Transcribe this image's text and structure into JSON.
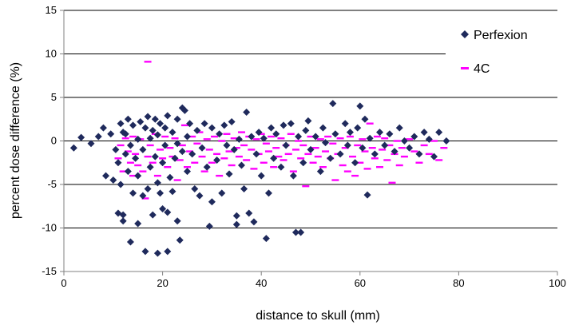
{
  "chart_data": {
    "type": "scatter",
    "xlabel": "distance to skull (mm)",
    "ylabel": "percent dose difference (%)",
    "xlim": [
      0,
      100
    ],
    "ylim": [
      -15,
      15
    ],
    "xticks": [
      0,
      20,
      40,
      60,
      80,
      100
    ],
    "yticks": [
      -15,
      -10,
      -5,
      0,
      5,
      10,
      15
    ],
    "grid": "horizontal",
    "legend_position": "top-right",
    "series": [
      {
        "name": "Perfexion",
        "marker": "diamond",
        "color": "#1f2a5c",
        "points": [
          [
            2,
            -0.8
          ],
          [
            3.5,
            0.4
          ],
          [
            5.5,
            -0.3
          ],
          [
            7,
            0.5
          ],
          [
            8,
            1.5
          ],
          [
            8.5,
            -4
          ],
          [
            9.5,
            0.8
          ],
          [
            10,
            -4.5
          ],
          [
            10.5,
            -1
          ],
          [
            11,
            -8.3
          ],
          [
            11,
            -2.5
          ],
          [
            11.5,
            -5
          ],
          [
            11.5,
            2
          ],
          [
            12,
            -9.2
          ],
          [
            12,
            -8.5
          ],
          [
            12,
            1
          ],
          [
            12.5,
            -1.5
          ],
          [
            12.5,
            0.8
          ],
          [
            13,
            2.5
          ],
          [
            13,
            -3.5
          ],
          [
            13.5,
            -11.6
          ],
          [
            13.5,
            -0.5
          ],
          [
            14,
            -6
          ],
          [
            14,
            1.8
          ],
          [
            14.5,
            -2
          ],
          [
            15,
            -9.5
          ],
          [
            15,
            0.2
          ],
          [
            15,
            -4
          ],
          [
            15.5,
            2.2
          ],
          [
            16,
            -6.3
          ],
          [
            16,
            -1
          ],
          [
            16.5,
            -12.7
          ],
          [
            16.5,
            1.5
          ],
          [
            17,
            -5.5
          ],
          [
            17,
            2.8
          ],
          [
            17.5,
            -3
          ],
          [
            17.5,
            0.3
          ],
          [
            18,
            -8.5
          ],
          [
            18,
            1.2
          ],
          [
            18.5,
            -1.8
          ],
          [
            18.5,
            2.5
          ],
          [
            19,
            -12.9
          ],
          [
            19,
            -4.8
          ],
          [
            19,
            0.7
          ],
          [
            19.5,
            -6
          ],
          [
            19.5,
            2
          ],
          [
            20,
            -7.8
          ],
          [
            20,
            -2.5
          ],
          [
            20.5,
            1.5
          ],
          [
            20.5,
            -0.5
          ],
          [
            21,
            -12.7
          ],
          [
            21,
            -8.2
          ],
          [
            21,
            2.9
          ],
          [
            21.5,
            -4.2
          ],
          [
            22,
            -5.8
          ],
          [
            22,
            1
          ],
          [
            22.5,
            -2
          ],
          [
            23,
            -9.2
          ],
          [
            23,
            2.5
          ],
          [
            23,
            -0.3
          ],
          [
            23.5,
            -11.4
          ],
          [
            24,
            3.8
          ],
          [
            24,
            -1.2
          ],
          [
            24.5,
            3.5
          ],
          [
            25,
            -3.5
          ],
          [
            25,
            0.5
          ],
          [
            25.5,
            2
          ],
          [
            26,
            -1.5
          ],
          [
            26.5,
            -5.5
          ],
          [
            27,
            1.2
          ],
          [
            27.5,
            -6.3
          ],
          [
            28,
            -0.8
          ],
          [
            28.5,
            2
          ],
          [
            29,
            -3
          ],
          [
            29.5,
            -9.8
          ],
          [
            30,
            1.5
          ],
          [
            30,
            -7
          ],
          [
            31,
            -2.2
          ],
          [
            31.5,
            0.8
          ],
          [
            32,
            -6
          ],
          [
            32.5,
            1.8
          ],
          [
            33,
            -0.5
          ],
          [
            33.5,
            -3.8
          ],
          [
            34,
            2.2
          ],
          [
            34.5,
            -1
          ],
          [
            35,
            -9.6
          ],
          [
            35,
            -8.6
          ],
          [
            35.5,
            0.2
          ],
          [
            36,
            -2.8
          ],
          [
            36.5,
            -5.5
          ],
          [
            37,
            3.3
          ],
          [
            37.5,
            -8.3
          ],
          [
            38,
            0.5
          ],
          [
            38.5,
            -9.3
          ],
          [
            39,
            -1.5
          ],
          [
            39.5,
            1
          ],
          [
            40,
            -4
          ],
          [
            40.5,
            0.3
          ],
          [
            41,
            -11.2
          ],
          [
            41.5,
            -6
          ],
          [
            42,
            1.5
          ],
          [
            42.5,
            -2
          ],
          [
            43,
            0.8
          ],
          [
            44,
            -3
          ],
          [
            44.5,
            1.8
          ],
          [
            45,
            -0.5
          ],
          [
            46,
            2
          ],
          [
            46.5,
            -4
          ],
          [
            47,
            -10.5
          ],
          [
            47.5,
            0.5
          ],
          [
            48,
            -10.5
          ],
          [
            48.5,
            -2.5
          ],
          [
            49,
            1.2
          ],
          [
            49.5,
            2.3
          ],
          [
            50,
            -1
          ],
          [
            51,
            0.5
          ],
          [
            52,
            -3.5
          ],
          [
            52.5,
            1.5
          ],
          [
            53,
            -0.2
          ],
          [
            54,
            -2
          ],
          [
            54.5,
            4.3
          ],
          [
            55,
            0.8
          ],
          [
            56,
            -1.5
          ],
          [
            57,
            2
          ],
          [
            57.5,
            -0.5
          ],
          [
            58,
            1
          ],
          [
            59,
            -2.5
          ],
          [
            59.5,
            1.5
          ],
          [
            60,
            4
          ],
          [
            60.5,
            -0.8
          ],
          [
            61,
            2.5
          ],
          [
            61.5,
            -6.2
          ],
          [
            62,
            0.3
          ],
          [
            63,
            -1.5
          ],
          [
            64,
            1
          ],
          [
            65,
            -0.5
          ],
          [
            66,
            0.8
          ],
          [
            67,
            -1.2
          ],
          [
            68,
            1.5
          ],
          [
            69,
            0
          ],
          [
            70,
            -0.8
          ],
          [
            71,
            0.5
          ],
          [
            72,
            -1.5
          ],
          [
            73,
            1
          ],
          [
            74,
            0.2
          ],
          [
            75,
            -1.8
          ],
          [
            76,
            1
          ],
          [
            77.5,
            0
          ]
        ]
      },
      {
        "name": "4C",
        "marker": "dash",
        "color": "#ff00ff",
        "points": [
          [
            11,
            -2
          ],
          [
            11.5,
            -0.5
          ],
          [
            12,
            -3.5
          ],
          [
            12.5,
            0.3
          ],
          [
            13,
            -1.2
          ],
          [
            13.5,
            -2.5
          ],
          [
            14,
            -4
          ],
          [
            14,
            0.5
          ],
          [
            14.5,
            -1.5
          ],
          [
            15,
            -2.8
          ],
          [
            15.5,
            0.2
          ],
          [
            16,
            -3.5
          ],
          [
            16.5,
            -6.6
          ],
          [
            17,
            9.1
          ],
          [
            17,
            -1.8
          ],
          [
            17.5,
            -0.5
          ],
          [
            18,
            -2.5
          ],
          [
            18.5,
            0.8
          ],
          [
            19,
            -4
          ],
          [
            19.5,
            -1
          ],
          [
            20,
            -2
          ],
          [
            20.5,
            0.5
          ],
          [
            21,
            -3
          ],
          [
            21.5,
            -0.8
          ],
          [
            22,
            -1.8
          ],
          [
            22.5,
            0.3
          ],
          [
            23,
            -4.5
          ],
          [
            23.5,
            -2.2
          ],
          [
            24,
            -0.5
          ],
          [
            24.5,
            1.8
          ],
          [
            25,
            -3
          ],
          [
            25.5,
            -1.2
          ],
          [
            26,
            0.5
          ],
          [
            26.5,
            -2.5
          ],
          [
            27,
            -0.3
          ],
          [
            27.5,
            1
          ],
          [
            28,
            -1.8
          ],
          [
            28.5,
            -3.5
          ],
          [
            29,
            0.2
          ],
          [
            29.5,
            -1
          ],
          [
            30,
            -2.5
          ],
          [
            30.5,
            0.5
          ],
          [
            31,
            -1.5
          ],
          [
            31.5,
            -4
          ],
          [
            32,
            0
          ],
          [
            32.5,
            -2
          ],
          [
            33,
            0.8
          ],
          [
            33.5,
            -1.2
          ],
          [
            34,
            -2.8
          ],
          [
            34.5,
            0.3
          ],
          [
            35,
            -0.8
          ],
          [
            35.5,
            -1.8
          ],
          [
            36,
            1
          ],
          [
            36.5,
            -0.5
          ],
          [
            37,
            -2.2
          ],
          [
            37.5,
            0.5
          ],
          [
            38,
            -1
          ],
          [
            38.5,
            -3.2
          ],
          [
            39,
            0.2
          ],
          [
            39.5,
            -1.5
          ],
          [
            40,
            0.8
          ],
          [
            40.5,
            -2.5
          ],
          [
            41,
            -0.3
          ],
          [
            41.5,
            -1.2
          ],
          [
            42,
            0.5
          ],
          [
            42.5,
            -3
          ],
          [
            43,
            -0.8
          ],
          [
            43.5,
            -1.8
          ],
          [
            44,
            0.3
          ],
          [
            44.5,
            -2.2
          ],
          [
            45,
            -0.5
          ],
          [
            45.5,
            -1.5
          ],
          [
            46,
            0.8
          ],
          [
            46.5,
            -3.5
          ],
          [
            47,
            -1
          ],
          [
            47.5,
            0
          ],
          [
            48,
            -2
          ],
          [
            48.5,
            -0.5
          ],
          [
            49,
            -5.2
          ],
          [
            49.5,
            -1.5
          ],
          [
            50,
            0.5
          ],
          [
            50.5,
            -2.5
          ],
          [
            51,
            -0.8
          ],
          [
            51.5,
            -1.8
          ],
          [
            52,
            0.2
          ],
          [
            52.5,
            -3
          ],
          [
            53,
            -1.2
          ],
          [
            53.5,
            0.5
          ],
          [
            54,
            -2
          ],
          [
            54.5,
            -0.3
          ],
          [
            55,
            -4.5
          ],
          [
            55.5,
            -1.5
          ],
          [
            56,
            0.3
          ],
          [
            56.5,
            -2.8
          ],
          [
            57,
            -0.8
          ],
          [
            57.5,
            -3.5
          ],
          [
            58,
            0.5
          ],
          [
            58.5,
            -1.8
          ],
          [
            59,
            -4
          ],
          [
            59.5,
            -0.5
          ],
          [
            60,
            -2.5
          ],
          [
            60.5,
            0.2
          ],
          [
            61,
            -1.2
          ],
          [
            61.5,
            -3.2
          ],
          [
            62,
            2
          ],
          [
            62.5,
            -0.8
          ],
          [
            63,
            -2
          ],
          [
            63.5,
            0.5
          ],
          [
            64,
            -3
          ],
          [
            64.5,
            -1
          ],
          [
            65,
            0.3
          ],
          [
            65.5,
            -2.2
          ],
          [
            66,
            -0.5
          ],
          [
            66.5,
            -4.8
          ],
          [
            67,
            -1.5
          ],
          [
            67.5,
            0
          ],
          [
            68,
            -2.8
          ],
          [
            68.5,
            -0.8
          ],
          [
            69,
            -1.8
          ],
          [
            70,
            0.2
          ],
          [
            71,
            -1.2
          ],
          [
            72,
            -2.5
          ],
          [
            73,
            -0.5
          ],
          [
            74,
            -1.5
          ],
          [
            75,
            0
          ],
          [
            76,
            -2.2
          ],
          [
            77,
            -0.8
          ]
        ]
      }
    ]
  }
}
